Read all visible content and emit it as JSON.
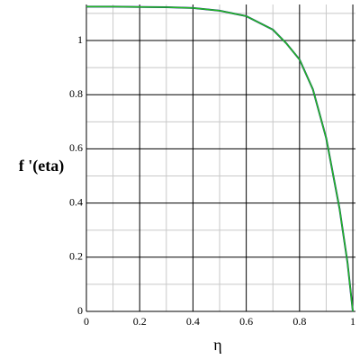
{
  "chart_data": {
    "type": "line",
    "x_label": "η",
    "y_label": "f '(eta)",
    "x": [
      0,
      0.1,
      0.2,
      0.3,
      0.4,
      0.5,
      0.6,
      0.7,
      0.75,
      0.8,
      0.85,
      0.9,
      0.95,
      0.98,
      1.0
    ],
    "series": [
      {
        "color": "#1a1a8c",
        "values": [
          1.125,
          1.125,
          1.124,
          1.123,
          1.12,
          1.11,
          1.09,
          1.04,
          0.99,
          0.93,
          0.82,
          0.64,
          0.38,
          0.18,
          0
        ]
      },
      {
        "color": "#22bb22",
        "values": [
          1.125,
          1.125,
          1.124,
          1.123,
          1.12,
          1.11,
          1.09,
          1.04,
          0.99,
          0.93,
          0.82,
          0.64,
          0.38,
          0.18,
          0
        ]
      }
    ],
    "xlim": [
      0,
      1.01
    ],
    "ylim": [
      0,
      1.133
    ],
    "xticks": [
      0,
      0.2,
      0.4,
      0.6,
      0.8,
      1
    ],
    "yticks": [
      0,
      0.2,
      0.4,
      0.6,
      0.8,
      1
    ],
    "grid": true
  }
}
